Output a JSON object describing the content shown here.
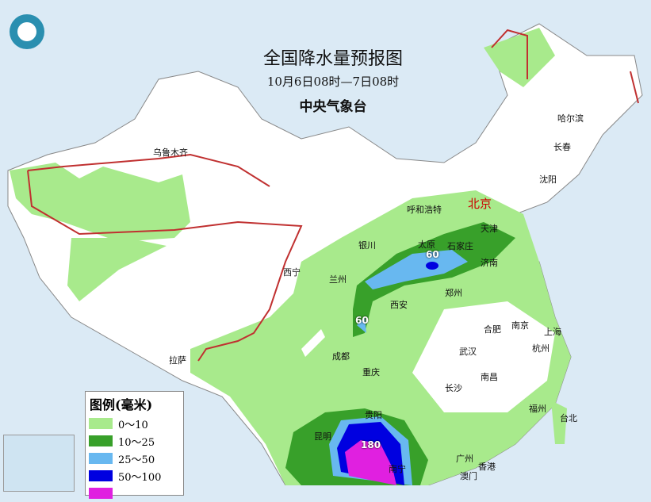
{
  "header": {
    "title": "全国降水量预报图",
    "period": "10月6日08时—7日08时",
    "issuer": "中央气象台"
  },
  "legend": {
    "title": "图例(毫米)",
    "items": [
      {
        "label": "0～10",
        "color": "#a8ea8c"
      },
      {
        "label": "10～25",
        "color": "#38a02a"
      },
      {
        "label": "25～50",
        "color": "#68b8f0"
      },
      {
        "label": "50～100",
        "color": "#0000e0"
      },
      {
        "label": "",
        "color": "#e020e0"
      }
    ]
  },
  "colors": {
    "land": "#ffffff",
    "sea": "#dbeaf5",
    "border": "#888888",
    "frontline": "#c03030"
  },
  "cities": [
    {
      "name": "北京",
      "capital": true
    },
    {
      "name": "乌鲁木齐"
    },
    {
      "name": "哈尔滨"
    },
    {
      "name": "长春"
    },
    {
      "name": "沈阳"
    },
    {
      "name": "呼和浩特"
    },
    {
      "name": "天津"
    },
    {
      "name": "太原"
    },
    {
      "name": "石家庄"
    },
    {
      "name": "济南"
    },
    {
      "name": "银川"
    },
    {
      "name": "西宁"
    },
    {
      "name": "兰州"
    },
    {
      "name": "郑州"
    },
    {
      "name": "西安"
    },
    {
      "name": "合肥"
    },
    {
      "name": "南京"
    },
    {
      "name": "上海"
    },
    {
      "name": "杭州"
    },
    {
      "name": "武汉"
    },
    {
      "name": "成都"
    },
    {
      "name": "重庆"
    },
    {
      "name": "拉萨"
    },
    {
      "name": "南昌"
    },
    {
      "name": "长沙"
    },
    {
      "name": "贵阳"
    },
    {
      "name": "昆明"
    },
    {
      "name": "福州"
    },
    {
      "name": "台北"
    },
    {
      "name": "广州"
    },
    {
      "name": "南宁"
    },
    {
      "name": "香港"
    },
    {
      "name": "澳门"
    }
  ],
  "max_values": [
    "60",
    "60",
    "180"
  ]
}
